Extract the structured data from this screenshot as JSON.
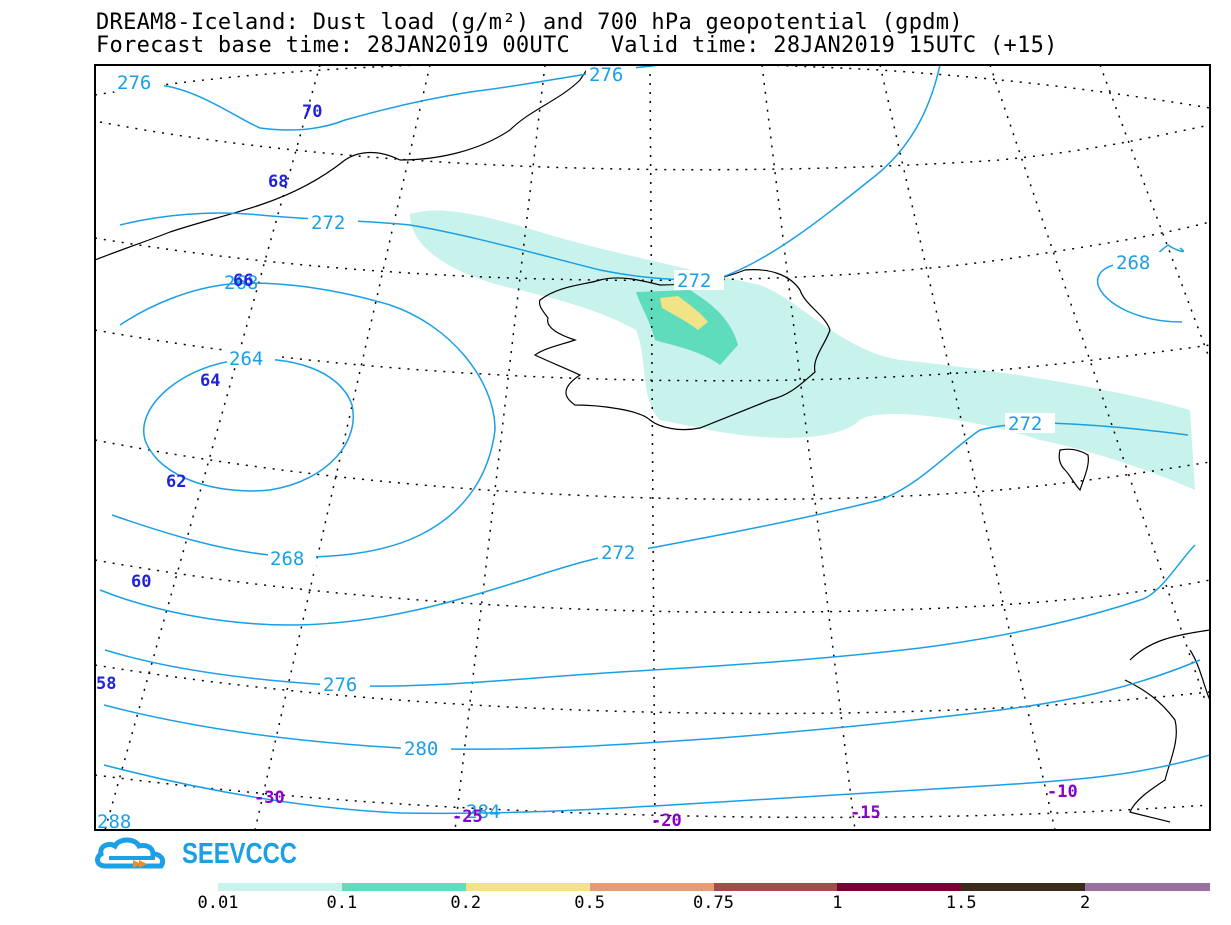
{
  "header": {
    "title_line1": "DREAM8-Iceland: Dust load (g/m²) and 700 hPa geopotential (gpdm)",
    "forecast_base_label": "Forecast base time: 28JAN2019 00UTC",
    "valid_time_label": "Valid time: 28JAN2019 15UTC (+15)"
  },
  "map": {
    "region": "Iceland",
    "geopotential_contour_labels": [
      "276",
      "276",
      "272",
      "272",
      "268",
      "268",
      "264",
      "268",
      "272",
      "272",
      "276",
      "280",
      "284",
      "288"
    ],
    "latitude_labels": [
      "70",
      "68",
      "66",
      "64",
      "62",
      "60",
      "58"
    ],
    "longitude_labels": [
      "-30",
      "-25",
      "-20",
      "-15",
      "-10"
    ],
    "colors": {
      "contour": "#1a9fe6",
      "latitude_label": "#2222dd",
      "longitude_label": "#8800cc",
      "coastline": "#000000",
      "frame": "#000000"
    }
  },
  "legend": {
    "colorbar_labels": [
      "0.01",
      "0.1",
      "0.2",
      "0.5",
      "0.75",
      "1",
      "1.5",
      "2"
    ],
    "colorbar_colors": [
      "#c8f2ec",
      "#5fdcbc",
      "#f1e386",
      "#e99a72",
      "#a64c48",
      "#7b0033",
      "#3b2b1b",
      "#97719f"
    ]
  },
  "logo": {
    "text": "SEEVCCC",
    "icon": "cloud-logo-icon"
  }
}
